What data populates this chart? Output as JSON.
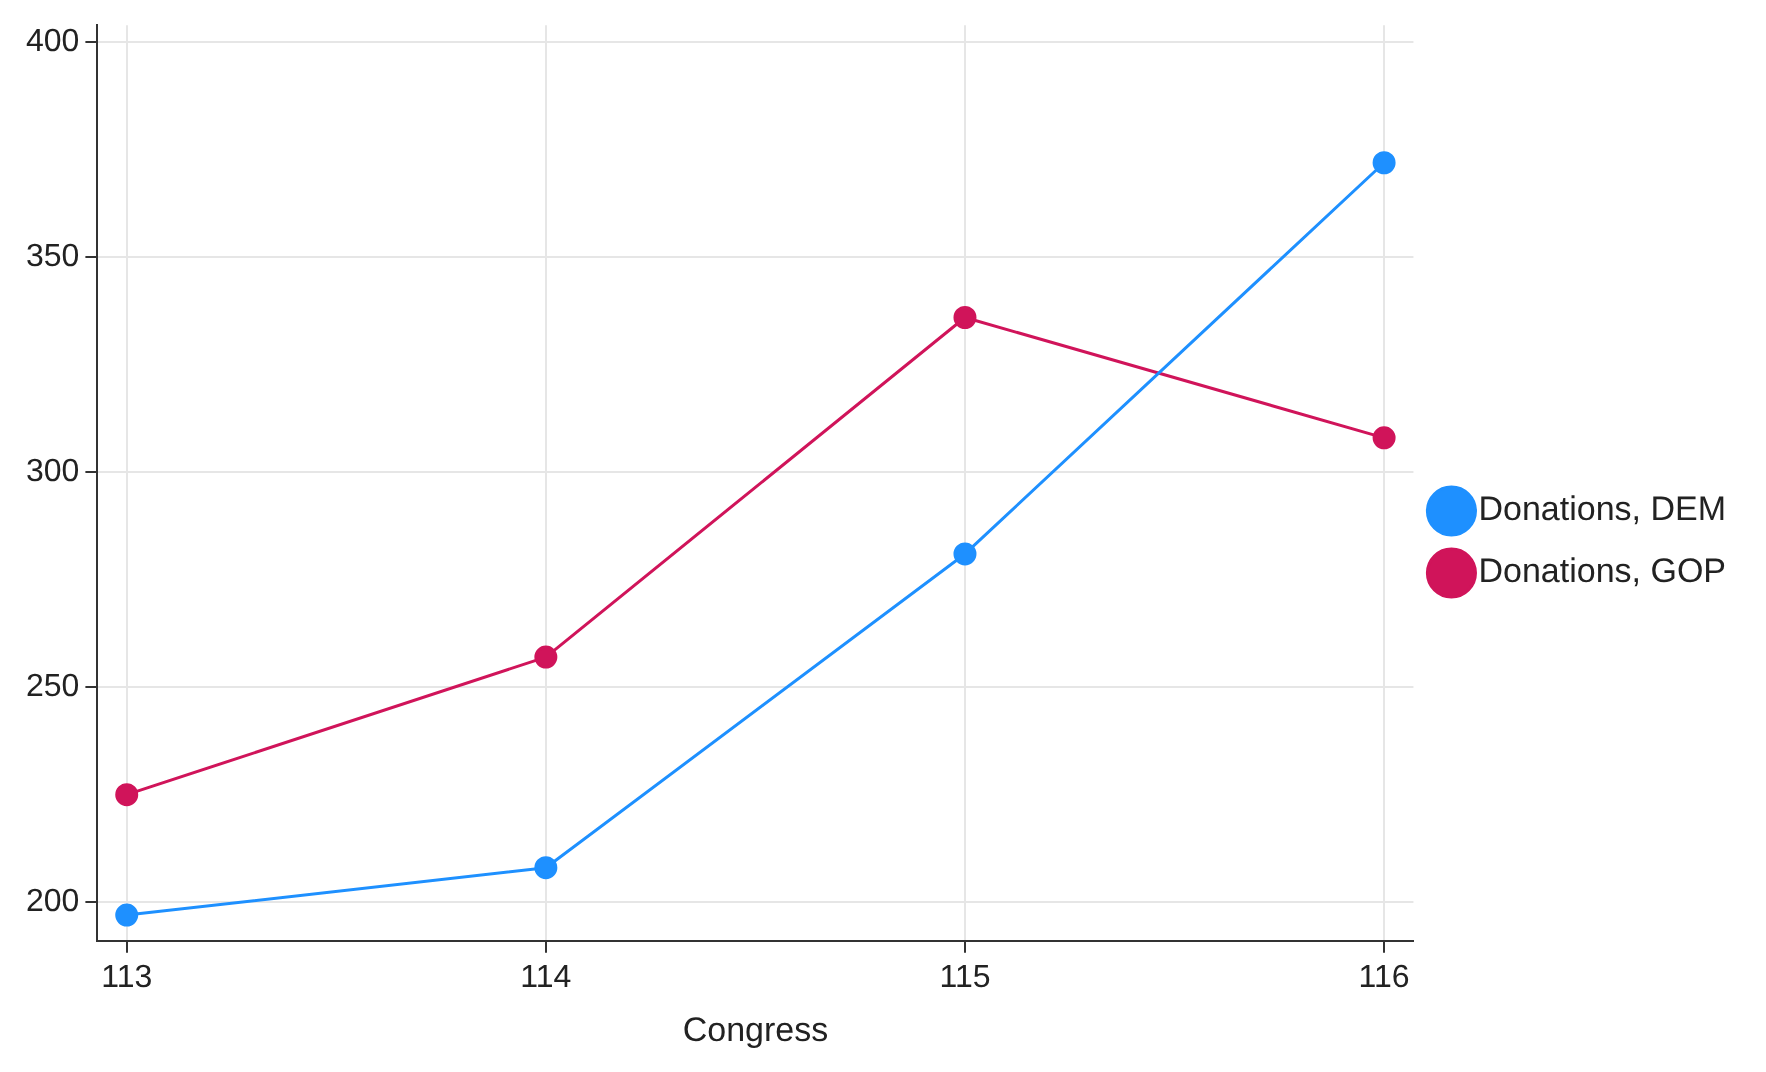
{
  "chart_data": {
    "type": "line",
    "xlabel": "Congress",
    "x": [
      113,
      114,
      115,
      116
    ],
    "series": [
      {
        "name": "Donations, DEM",
        "color": "#1e90ff",
        "values": [
          197,
          208,
          281,
          372
        ]
      },
      {
        "name": "Donations, GOP",
        "color": "#d0145a",
        "values": [
          225,
          257,
          336,
          308
        ]
      }
    ],
    "xlim": [
      112.93,
      116.07
    ],
    "xticks": [
      113,
      114,
      115,
      116
    ],
    "ylim": [
      191,
      404
    ],
    "yticks": [
      200,
      250,
      300,
      350,
      400
    ],
    "grid": true,
    "legend": "right",
    "marker": "circle",
    "line_style": "solid"
  }
}
